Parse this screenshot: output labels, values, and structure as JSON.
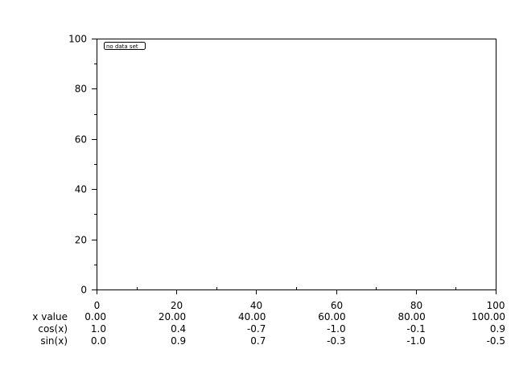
{
  "chart_data": {
    "type": "line",
    "title": "",
    "xlabel": "",
    "ylabel": "",
    "xlim": [
      0,
      100
    ],
    "ylim": [
      0,
      100
    ],
    "x_ticks": [
      "0",
      "20",
      "40",
      "60",
      "80",
      "100"
    ],
    "y_ticks": [
      "0",
      "20",
      "40",
      "60",
      "80",
      "100"
    ],
    "grid": false,
    "series": [],
    "legend": {
      "text": "no data set",
      "placement": "top-left"
    },
    "value_table": {
      "rows": [
        {
          "label": "x value",
          "values": [
            "0.00",
            "20.00",
            "40.00",
            "60.00",
            "80.00",
            "100.00"
          ]
        },
        {
          "label": "cos(x)",
          "values": [
            "1.0",
            "0.4",
            "-0.7",
            "-1.0",
            "-0.1",
            "0.9"
          ]
        },
        {
          "label": "sin(x)",
          "values": [
            "0.0",
            "0.9",
            "0.7",
            "-0.3",
            "-1.0",
            "-0.5"
          ]
        }
      ]
    }
  }
}
